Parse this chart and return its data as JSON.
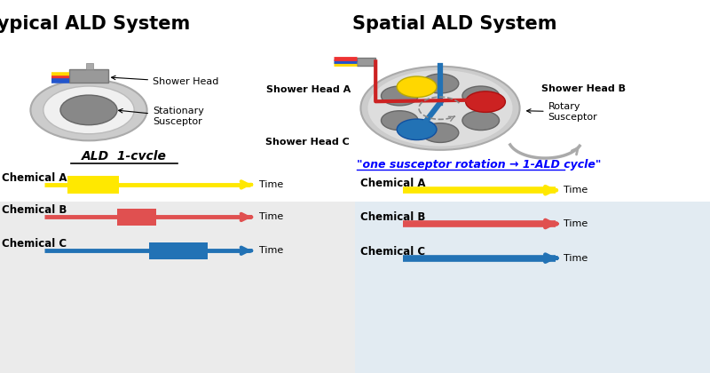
{
  "left_title": "Typical ALD System",
  "right_title": "Spatial ALD System",
  "left_subtitle": "ALD  1-cvcle",
  "right_quote": "\"one susceptor rotation → 1-ALD cycle\"",
  "chemicals": [
    "Chemical A",
    "Chemical B",
    "Chemical C"
  ],
  "colors": {
    "yellow": "#FFE800",
    "red": "#E05050",
    "blue": "#2272B5",
    "arrow_yellow": "#FFE800",
    "arrow_red": "#E05050",
    "arrow_blue": "#2272B5",
    "gray_light": "#C8C8C8",
    "gray_dark": "#888888",
    "gray_box": "#999999",
    "bg": "#FFFFFF",
    "wire_red": "#EE3333",
    "wire_blue": "#1155CC",
    "wire_yellow": "#FFCC00"
  }
}
